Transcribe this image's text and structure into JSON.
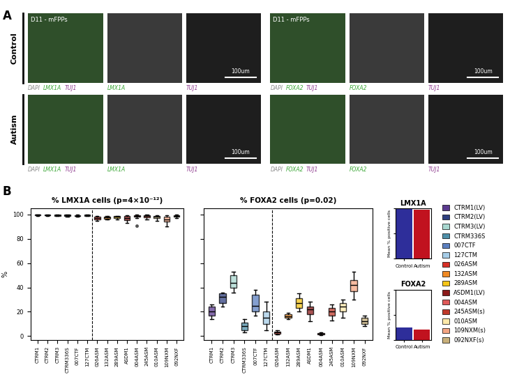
{
  "panel_a": {
    "panel_label": "A",
    "header": "D11 - mFPPs",
    "rows": [
      "Control",
      "Autism"
    ],
    "columns": [
      {
        "words": [
          "DAPI",
          "LMX1A",
          "TUJ1"
        ],
        "colors": [
          "#8c8c8c",
          "#3aa635",
          "#8e3a8e"
        ]
      },
      {
        "words": [
          "LMX1A"
        ],
        "colors": [
          "#3aa635"
        ]
      },
      {
        "words": [
          "TUJ1"
        ],
        "colors": [
          "#8e3a8e"
        ]
      },
      {
        "words": [
          "DAPI",
          "FOXA2",
          "TUJ1"
        ],
        "colors": [
          "#8c8c8c",
          "#3aa635",
          "#8e3a8e"
        ]
      },
      {
        "words": [
          "FOXA2"
        ],
        "colors": [
          "#3aa635"
        ]
      },
      {
        "words": [
          "TUJ1"
        ],
        "colors": [
          "#8e3a8e"
        ]
      }
    ],
    "scale_bar": "100um"
  },
  "panel_b_label": "B",
  "sample_legend": {
    "names": [
      "CTRM1(LV)",
      "CTRM2(LV)",
      "CTRM3(LV)",
      "CTRM336S",
      "007CTF",
      "127CTM",
      "026ASM",
      "132ASM",
      "289ASM",
      "ASDM1(LV)",
      "004ASM",
      "245ASM(s)",
      "010ASM",
      "109NXM(s)",
      "092NXF(s)"
    ],
    "colors": [
      "#5b3a8f",
      "#2f3f7f",
      "#a8d8d0",
      "#4e8fa8",
      "#5b7fbf",
      "#a6cde8",
      "#d73027",
      "#f08a24",
      "#f5c518",
      "#8b1a1a",
      "#e05a5a",
      "#c0392b",
      "#fde9a9",
      "#f4a582",
      "#c9b07a"
    ]
  },
  "chart_data": [
    {
      "type": "box",
      "title": "% LMX1A cells (p=4×10⁻¹²)",
      "y_label": "%",
      "categories": [
        "CTRM1",
        "CTRM2",
        "CTRM3",
        "CTRM336S",
        "007CTF",
        "127CTM",
        "026ASM",
        "132ASM",
        "289ASM",
        "ASDM1",
        "004ASM",
        "245ASM",
        "010ASM",
        "109NXM",
        "092NXF"
      ],
      "whisker_low": [
        99,
        99,
        98.5,
        98.3,
        98,
        98.5,
        95,
        96,
        96,
        93,
        97,
        96,
        95,
        90,
        97
      ],
      "q1": [
        99.5,
        99.3,
        99,
        98.8,
        98.5,
        99,
        96,
        96.5,
        97,
        95.5,
        98,
        97.5,
        97,
        94,
        98
      ],
      "median": [
        99.8,
        99.6,
        99.5,
        99.3,
        99,
        99.5,
        97,
        97.5,
        98,
        97,
        99,
        98.5,
        98,
        96,
        98.5
      ],
      "q3": [
        100,
        99.9,
        99.8,
        99.7,
        99.5,
        99.8,
        98,
        98,
        98.5,
        98.5,
        99.5,
        99.2,
        99,
        98,
        99.2
      ],
      "whisker_high": [
        100,
        100,
        100,
        100,
        100,
        100,
        98.5,
        98.5,
        99,
        99.5,
        100,
        100,
        99.5,
        99.5,
        100
      ],
      "outliers": [
        [],
        [],
        [],
        [],
        [],
        [],
        [],
        [],
        [],
        [],
        [
          91
        ],
        [],
        [],
        [],
        []
      ],
      "ylim": [
        -3,
        105
      ],
      "yticks": [
        0,
        20,
        40,
        60,
        80,
        100
      ]
    },
    {
      "type": "box",
      "title": "% FOXA2 cells (p=0.02)",
      "categories": [
        "CTRM1",
        "CTRM2",
        "CTRM3",
        "CTRM336S",
        "007CTF",
        "127CTM",
        "026ASM",
        "132ASM",
        "289ASM",
        "ASDM1",
        "004ASM",
        "245ASM",
        "010ASM",
        "109NXM",
        "092NXF"
      ],
      "whisker_low": [
        14,
        24,
        36,
        3,
        17,
        5,
        1.5,
        14,
        20,
        12,
        1,
        13,
        15,
        30,
        8
      ],
      "q1": [
        17,
        27,
        40,
        5,
        20,
        10,
        2,
        15,
        23,
        18,
        1.5,
        17,
        20,
        37,
        10
      ],
      "median": [
        20,
        32,
        44,
        8,
        25,
        15,
        3,
        16,
        27,
        22,
        2,
        20,
        24,
        42,
        12
      ],
      "q3": [
        24,
        35,
        50,
        11,
        34,
        20,
        3.5,
        18,
        31,
        24,
        2.5,
        23,
        27,
        46,
        15
      ],
      "whisker_high": [
        26,
        36,
        53,
        14,
        38,
        28,
        4.5,
        19,
        35,
        28,
        3,
        26,
        30,
        53,
        17
      ],
      "outliers": [
        [],
        [],
        [],
        [],
        [],
        [],
        [],
        [],
        [],
        [],
        [],
        [],
        [],
        [],
        []
      ],
      "ylim": [
        -3,
        105
      ],
      "yticks": [
        0,
        20,
        40,
        60,
        80,
        100
      ],
      "tick_labels": "x"
    },
    {
      "type": "bar",
      "title": "LMX1A",
      "y_label": "Mean % positive cells",
      "categories": [
        "Control",
        "Autism"
      ],
      "values": [
        99.4,
        97.6
      ],
      "colors": [
        "#2e2e9a",
        "#c1121f"
      ],
      "ylim": [
        0,
        100
      ],
      "tick_labels": "x"
    },
    {
      "type": "bar",
      "title": "FOXA2",
      "y_label": "Mean % positive cells",
      "categories": [
        "Control",
        "Autism"
      ],
      "values": [
        25,
        20
      ],
      "colors": [
        "#2e2e9a",
        "#c1121f"
      ],
      "ylim": [
        0,
        100
      ],
      "tick_labels": "x"
    }
  ]
}
